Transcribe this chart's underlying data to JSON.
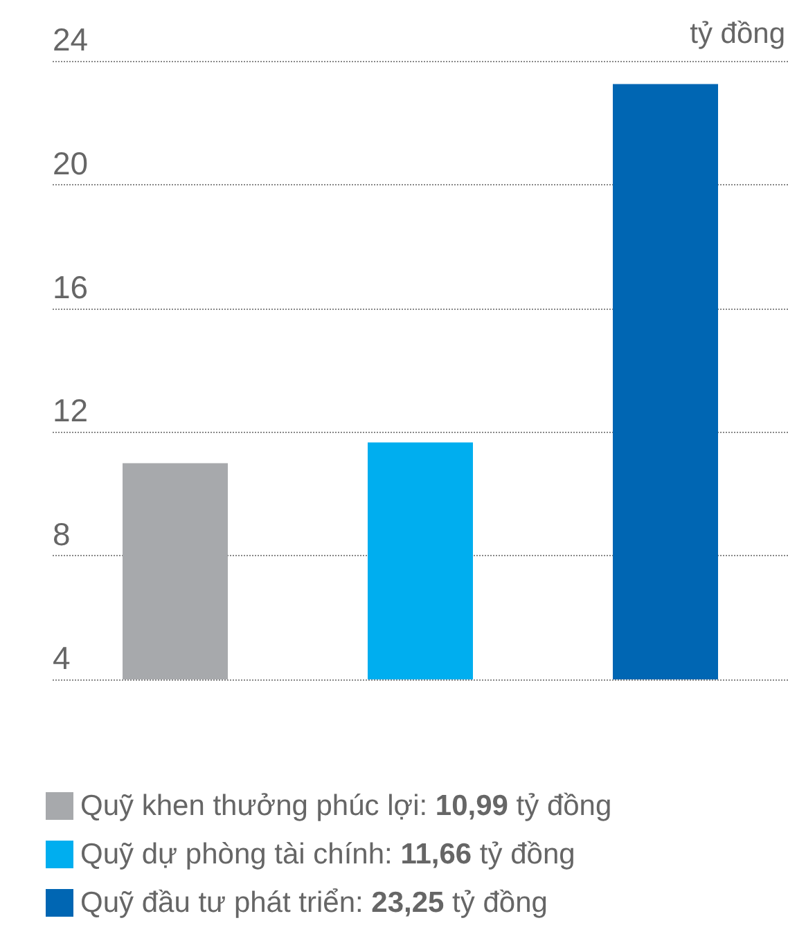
{
  "chart_data": {
    "type": "bar",
    "ylabel": "tỷ đồng",
    "categories": [
      null,
      null,
      null
    ],
    "series": [
      {
        "name": "Quỹ khen thưởng phúc lợi: 10,99 tỷ đồng",
        "color": "#a7a9ac",
        "values": [
          10.99,
          null,
          null
        ]
      },
      {
        "name": "Quỹ dự phòng tài chính: 11,66 tỷ đồng",
        "color": "#00aeef",
        "values": [
          null,
          11.66,
          null
        ]
      },
      {
        "name": "Quỹ đầu tư phát triển: 23,25 tỷ đồng",
        "color": "#0066b3",
        "values": [
          null,
          null,
          23.25
        ]
      }
    ],
    "ylim": [
      4,
      24
    ],
    "yticks": [
      4,
      8,
      12,
      16,
      20,
      24
    ],
    "grid": "y",
    "legend": "bottom"
  }
}
